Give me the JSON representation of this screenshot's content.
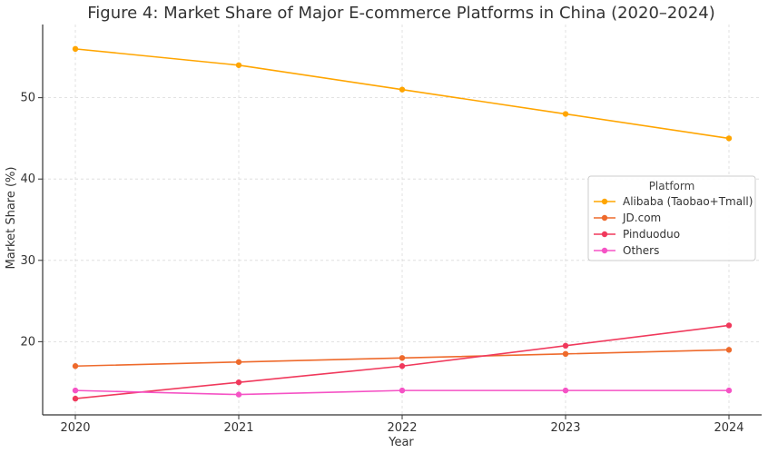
{
  "chart_data": {
    "type": "line",
    "title": "Figure 4: Market Share of Major E-commerce Platforms in China (2020–2024)",
    "xlabel": "Year",
    "ylabel": "Market Share (%)",
    "x": [
      "2020",
      "2021",
      "2022",
      "2023",
      "2024"
    ],
    "xlim": [
      2019.8,
      2024.2
    ],
    "ylim": [
      11,
      59
    ],
    "yticks": [
      20,
      30,
      40,
      50
    ],
    "grid": true,
    "legend": {
      "title": "Platform",
      "placement": "center-right"
    },
    "series": [
      {
        "name": "Alibaba (Taobao+Tmall)",
        "color": "#FFA500",
        "values": [
          56,
          54,
          51,
          48,
          45
        ]
      },
      {
        "name": "JD.com",
        "color": "#EE6A2C",
        "values": [
          17,
          17.5,
          18,
          18.5,
          19
        ]
      },
      {
        "name": "Pinduoduo",
        "color": "#F0395C",
        "values": [
          13,
          15,
          17,
          19.5,
          22
        ]
      },
      {
        "name": "Others",
        "color": "#F553C5",
        "values": [
          14,
          13.5,
          14,
          14,
          14
        ]
      }
    ]
  }
}
